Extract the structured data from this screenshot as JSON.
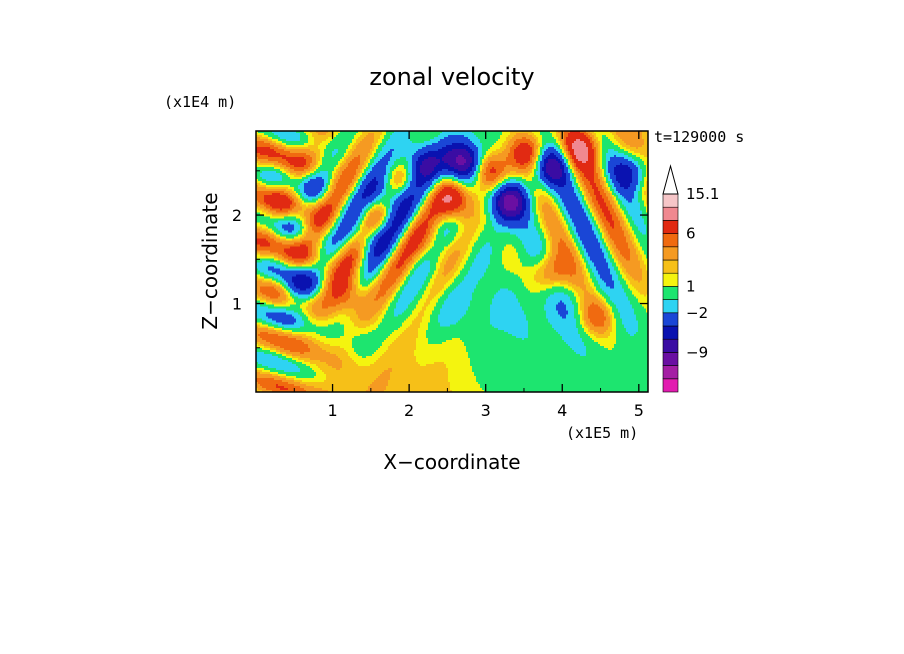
{
  "chart_data": {
    "type": "heatmap",
    "title": "zonal velocity",
    "xlabel": "X−coordinate",
    "ylabel": "Z−coordinate",
    "x_scale_label": "(x1E5 m)",
    "y_scale_label": "(x1E4 m)",
    "time_label": "t=129000 s",
    "xlim": [
      0,
      5.12
    ],
    "ylim": [
      0,
      2.95
    ],
    "x_ticks": [
      {
        "value": 1,
        "label": "1"
      },
      {
        "value": 2,
        "label": "2"
      },
      {
        "value": 3,
        "label": "3"
      },
      {
        "value": 4,
        "label": "4"
      },
      {
        "value": 5,
        "label": "5"
      }
    ],
    "y_ticks": [
      {
        "value": 1,
        "label": "1"
      },
      {
        "value": 2,
        "label": "2"
      }
    ],
    "colorbar": {
      "levels": [
        {
          "color": "#e21cb0",
          "label": ""
        },
        {
          "color": "#a41ea4",
          "label": ""
        },
        {
          "color": "#6a0fa2",
          "label": "−9"
        },
        {
          "color": "#3a0ca3",
          "label": ""
        },
        {
          "color": "#0a12b0",
          "label": ""
        },
        {
          "color": "#1a46d6",
          "label": "−2"
        },
        {
          "color": "#2ed3f2",
          "label": ""
        },
        {
          "color": "#1de56f",
          "label": "1"
        },
        {
          "color": "#f4f40f",
          "label": ""
        },
        {
          "color": "#f6c018",
          "label": ""
        },
        {
          "color": "#f59a22",
          "label": ""
        },
        {
          "color": "#f06a10",
          "label": "6"
        },
        {
          "color": "#e12a12",
          "label": ""
        },
        {
          "color": "#f08890",
          "label": ""
        },
        {
          "color": "#f6c6c8",
          "label": "15.1"
        }
      ],
      "extend_max": true
    },
    "field_features": [
      {
        "x": 2.7,
        "z": 2.6,
        "value": -12
      },
      {
        "x": 3.3,
        "z": 2.15,
        "value": -10
      },
      {
        "x": 2.6,
        "z": 2.15,
        "value": 9
      },
      {
        "x": 3.05,
        "z": 2.5,
        "value": 8
      },
      {
        "x": 3.85,
        "z": 2.55,
        "value": -8
      },
      {
        "x": 2.15,
        "z": 2.6,
        "value": -7
      },
      {
        "x": 3.55,
        "z": 2.7,
        "value": 7
      },
      {
        "x": 1.7,
        "z": 2.2,
        "value": -7
      },
      {
        "x": 1.45,
        "z": 1.75,
        "value": -6
      },
      {
        "x": 1.2,
        "z": 1.1,
        "value": 5
      },
      {
        "x": 0.55,
        "z": 1.2,
        "value": -6
      },
      {
        "x": 1.35,
        "z": 0.55,
        "value": -2.5
      },
      {
        "x": 2.55,
        "z": 0.95,
        "value": -1
      },
      {
        "x": 4.45,
        "z": 0.85,
        "value": 5
      },
      {
        "x": 4.9,
        "z": 2.5,
        "value": -7
      },
      {
        "x": 4.25,
        "z": 2.75,
        "value": 7
      },
      {
        "x": 0.8,
        "z": 2.35,
        "value": -2.5
      },
      {
        "x": 2.3,
        "z": 1.65,
        "value": 3
      },
      {
        "x": 3.85,
        "z": 1.35,
        "value": 6
      },
      {
        "x": 3.1,
        "z": 0.2,
        "value": -1
      }
    ]
  }
}
